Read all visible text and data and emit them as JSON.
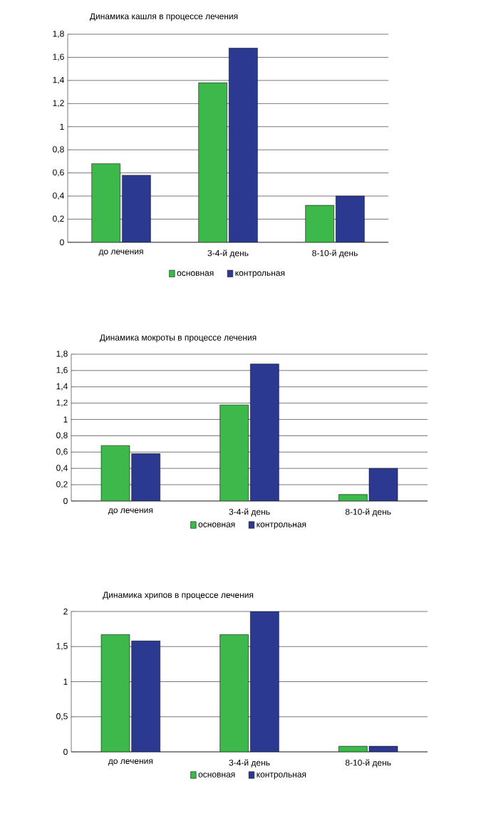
{
  "chart_data": [
    {
      "type": "bar",
      "title": "Динамика кашля в процессе лечения",
      "categories": [
        "до лечения",
        "3-4-й день",
        "8-10-й день"
      ],
      "series": [
        {
          "name": "основная",
          "color": "#3cb94a",
          "values": [
            0.68,
            1.38,
            0.32
          ]
        },
        {
          "name": "контрольная",
          "color": "#2b3990",
          "values": [
            0.58,
            1.68,
            0.4
          ]
        }
      ],
      "ylim": [
        0,
        1.8
      ],
      "yticks": [
        0,
        {
          "value": 0.2,
          "label": "0,2"
        },
        {
          "value": 0.4,
          "label": "0,4"
        },
        {
          "value": 0.6,
          "label": "0,6"
        },
        {
          "value": 0.8,
          "label": "0,8"
        },
        1,
        {
          "value": 1.2,
          "label": "1,2"
        },
        {
          "value": 1.4,
          "label": "1,4"
        },
        {
          "value": 1.6,
          "label": "1,6"
        },
        {
          "value": 1.8,
          "label": "1,8"
        }
      ],
      "grid": "y",
      "legend": "bottom"
    },
    {
      "type": "bar",
      "title": "Динамика мокроты в процессе лечения",
      "categories": [
        "до лечения",
        "3-4-й день",
        "8-10-й день"
      ],
      "series": [
        {
          "name": "основная",
          "color": "#3cb94a",
          "values": [
            0.68,
            1.18,
            0.08
          ]
        },
        {
          "name": "контрольная",
          "color": "#2b3990",
          "values": [
            0.58,
            1.68,
            0.4
          ]
        }
      ],
      "ylim": [
        0,
        1.8
      ],
      "yticks": [
        0,
        {
          "value": 0.2,
          "label": "0,2"
        },
        {
          "value": 0.4,
          "label": "0,4"
        },
        {
          "value": 0.6,
          "label": "0,6"
        },
        {
          "value": 0.8,
          "label": "0,8"
        },
        1,
        {
          "value": 1.2,
          "label": "1,2"
        },
        {
          "value": 1.4,
          "label": "1,4"
        },
        {
          "value": 1.6,
          "label": "1,6"
        },
        {
          "value": 1.8,
          "label": "1,8"
        }
      ],
      "grid": "y",
      "legend": "bottom"
    },
    {
      "type": "bar",
      "title": "Динамика хрипов в процессе лечения",
      "categories": [
        "до лечения",
        "3-4-й день",
        "8-10-й день"
      ],
      "series": [
        {
          "name": "основная",
          "color": "#3cb94a",
          "values": [
            1.67,
            1.67,
            0.08
          ]
        },
        {
          "name": "контрольная",
          "color": "#2b3990",
          "values": [
            1.58,
            2.0,
            0.08
          ]
        }
      ],
      "ylim": [
        0,
        2
      ],
      "yticks": [
        0,
        {
          "value": 0.5,
          "label": "0,5"
        },
        1,
        {
          "value": 1.5,
          "label": "1,5"
        },
        2
      ],
      "grid": "y",
      "legend": "bottom"
    }
  ]
}
